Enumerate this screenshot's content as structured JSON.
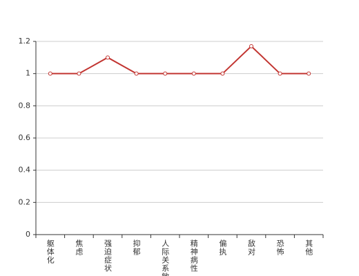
{
  "chart_data": {
    "type": "line",
    "categories": [
      "躯体化",
      "焦虑",
      "强迫症状",
      "抑郁",
      "人际关系敏感",
      "精神病性",
      "偏执",
      "敌对",
      "恐怖",
      "其他"
    ],
    "series": [
      {
        "color": "#c23531",
        "values": [
          1,
          1,
          1.1,
          1,
          1,
          1,
          1,
          1.17,
          1,
          1
        ]
      }
    ],
    "ylim": [
      0,
      1.2
    ],
    "yticks": [
      0,
      0.2,
      0.4,
      0.6,
      0.8,
      1,
      1.2
    ],
    "grid": true
  }
}
